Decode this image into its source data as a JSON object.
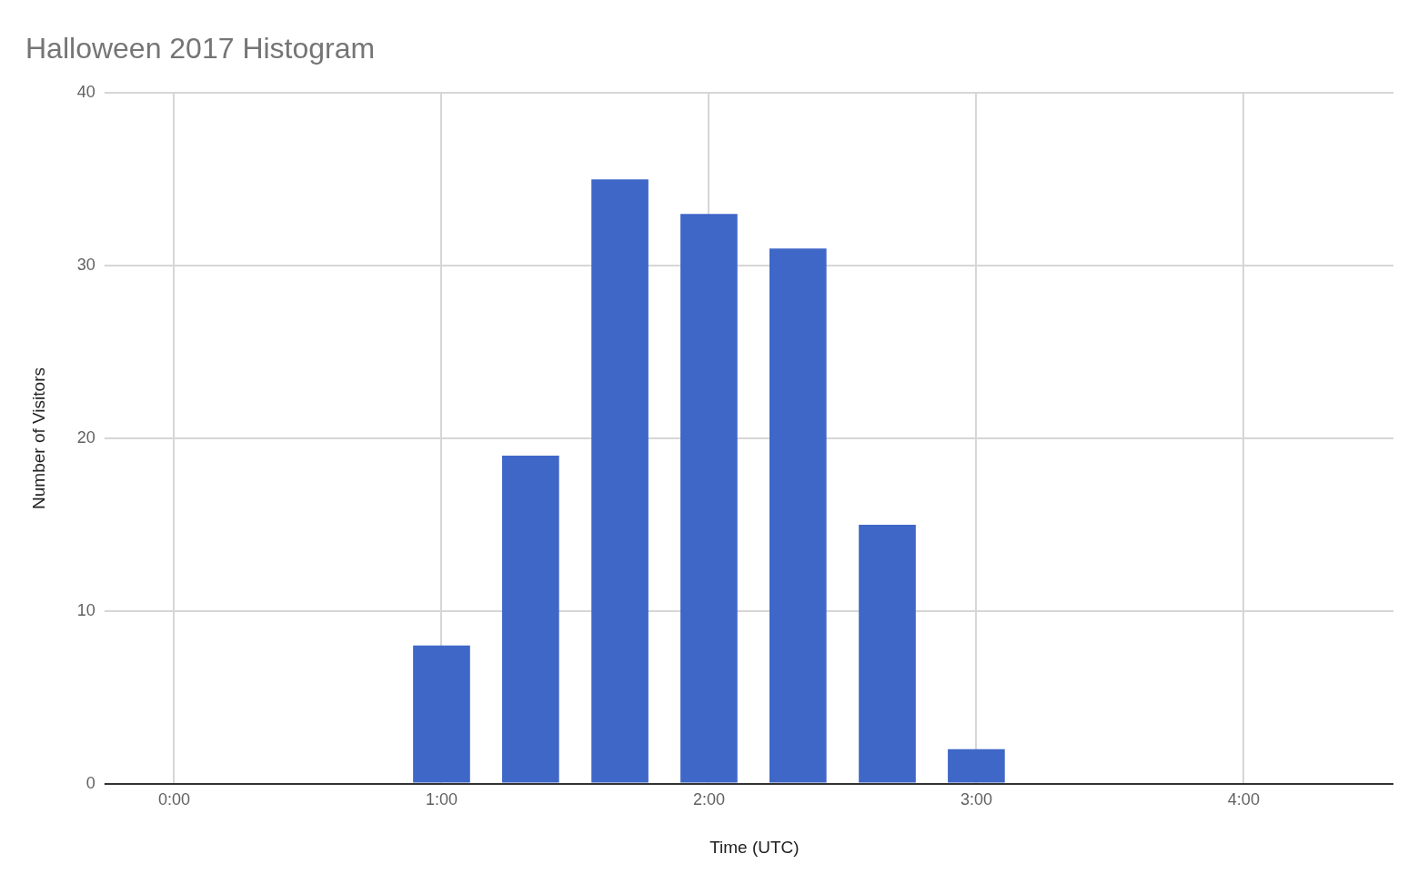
{
  "chart_data": {
    "type": "bar",
    "title": "Halloween 2017 Histogram",
    "xlabel": "Time (UTC)",
    "ylabel": "Number of Visitors",
    "x": [
      1,
      1.333,
      1.667,
      2,
      2.333,
      2.667,
      3
    ],
    "values": [
      8,
      19,
      35,
      33,
      31,
      15,
      2
    ],
    "color": "#3f67c8",
    "xlim": [
      -0.22,
      4.56
    ],
    "xticks": [
      {
        "value": 0,
        "label": "0:00"
      },
      {
        "value": 1,
        "label": "1:00"
      },
      {
        "value": 2,
        "label": "2:00"
      },
      {
        "value": 3,
        "label": "3:00"
      },
      {
        "value": 4,
        "label": "4:00"
      }
    ],
    "ylim": [
      0,
      40
    ],
    "yticks": [
      0,
      10,
      20,
      30,
      40
    ],
    "grid": true,
    "legend": false
  }
}
